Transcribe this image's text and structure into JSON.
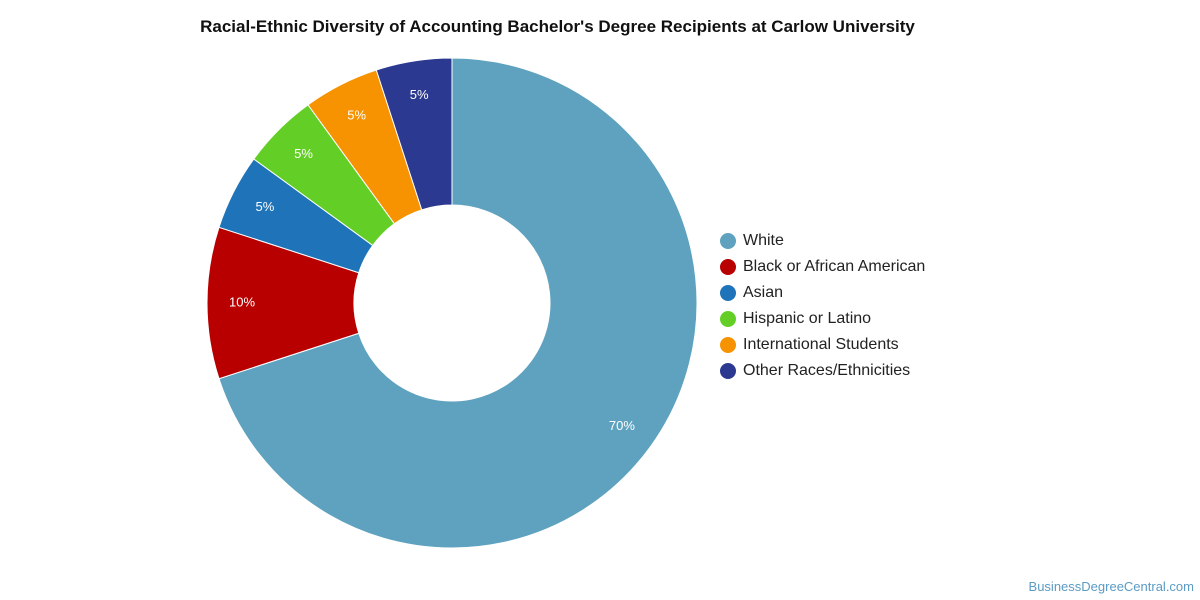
{
  "chart_data": {
    "type": "pie",
    "title": "Racial-Ethnic Diversity of Accounting Bachelor's Degree Recipients at Carlow University",
    "donut": true,
    "legend_position": "right",
    "slices": [
      {
        "name": "White",
        "value": 70,
        "label": "70%",
        "color": "#5ea2bf"
      },
      {
        "name": "Black or African American",
        "value": 10,
        "label": "10%",
        "color": "#b90000"
      },
      {
        "name": "Asian",
        "value": 5,
        "label": "5%",
        "color": "#1f73b8"
      },
      {
        "name": "Hispanic or Latino",
        "value": 5,
        "label": "5%",
        "color": "#63cf26"
      },
      {
        "name": "International Students",
        "value": 5,
        "label": "5%",
        "color": "#f79200"
      },
      {
        "name": "Other Races/Ethnicities",
        "value": 5,
        "label": "5%",
        "color": "#2c3990"
      }
    ]
  },
  "footer": {
    "source": "BusinessDegreeCentral.com"
  }
}
